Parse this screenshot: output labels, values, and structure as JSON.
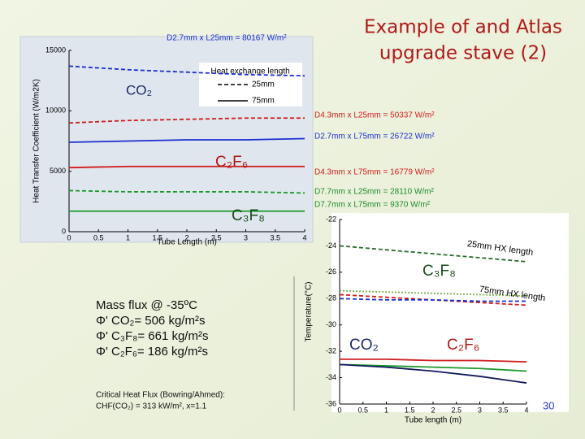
{
  "title": [
    "Example of and Atlas",
    "upgrade stave (2)"
  ],
  "mass_flux": [
    "Mass flux @ -35ºC",
    "Φ' CO₂=   506 kg/m²s",
    "Φ' C₃F₈=  661 kg/m²s",
    "Φ' C₂F₆=  186 kg/m²s"
  ],
  "chf": [
    "Critical Heat Flux (Bowring/Ahmed):",
    "CHF(CO₂) = 313 kW/m², x=1.1"
  ],
  "page_number": "30",
  "chart_data": [
    {
      "type": "line",
      "xlabel": "Tube Length (m)",
      "ylabel": "Heat Transfer Coefficient (W/m2K)",
      "x": [
        0,
        1,
        2,
        3,
        4
      ],
      "xlim": [
        0,
        4
      ],
      "xticks": [
        0,
        0.5,
        1,
        1.5,
        2,
        2.5,
        3,
        3.5,
        4
      ],
      "ylim": [
        0,
        15000
      ],
      "yticks": [
        0,
        5000,
        10000,
        15000
      ],
      "legend_title": "Heat exchange length",
      "legend": [
        {
          "label": "25mm",
          "style": "dashed"
        },
        {
          "label": "75mm",
          "style": "solid"
        }
      ],
      "series": [
        {
          "color": "#1c2fd0",
          "style": "dashed",
          "values": [
            13700,
            13400,
            13200,
            13000,
            12900
          ]
        },
        {
          "color": "#d01c1c",
          "style": "dashed",
          "values": [
            9000,
            9200,
            9300,
            9400,
            9400
          ]
        },
        {
          "color": "#1c2fd0",
          "style": "solid",
          "values": [
            7400,
            7500,
            7600,
            7600,
            7700
          ]
        },
        {
          "color": "#d01c1c",
          "style": "solid",
          "values": [
            5300,
            5400,
            5400,
            5400,
            5400
          ]
        },
        {
          "color": "#1a9a2a",
          "style": "dashed",
          "values": [
            3400,
            3300,
            3300,
            3300,
            3200
          ]
        },
        {
          "color": "#1a9a2a",
          "style": "solid",
          "values": [
            1700,
            1700,
            1700,
            1700,
            1700
          ]
        }
      ],
      "annotations": [
        {
          "text": "D2.7mm x L25mm = 80167 W/m²",
          "color": "#1c2fd0"
        },
        {
          "text": "D4.3mm x L25mm = 50337 W/m²",
          "color": "#d01c1c"
        },
        {
          "text": "D2.7mm x L75mm = 26722 W/m²",
          "color": "#1c2fd0"
        },
        {
          "text": "D4.3mm x L75mm = 16779 W/m²",
          "color": "#d01c1c"
        },
        {
          "text": "D7.7mm x L25mm = 28110 W/m²",
          "color": "#1a8a2a"
        },
        {
          "text": "D7.7mm x L75mm = 9370 W/m²",
          "color": "#1a8a2a"
        },
        {
          "text": "CO₂",
          "color": "#1a2a6a"
        },
        {
          "text": "C₂F₆",
          "color": "#b01818"
        },
        {
          "text": "C₃F₈",
          "color": "#1a4a1a"
        }
      ]
    },
    {
      "type": "line",
      "xlabel": "Tube length (m)",
      "ylabel": "Temperature(°C)",
      "x": [
        0,
        1,
        2,
        3,
        4
      ],
      "xlim": [
        0,
        4
      ],
      "xticks": [
        0,
        0.5,
        1,
        1.5,
        2,
        2.5,
        3,
        3.5,
        4
      ],
      "ylim": [
        -36,
        -22
      ],
      "yticks": [
        -22,
        -24,
        -26,
        -28,
        -30,
        -32,
        -34,
        -36
      ],
      "series": [
        {
          "color": "#2a6a2a",
          "style": "dashed",
          "values": [
            -24.0,
            -24.3,
            -24.6,
            -24.9,
            -25.2
          ]
        },
        {
          "color": "#7ab04a",
          "style": "dotted",
          "values": [
            -27.4,
            -27.5,
            -27.6,
            -27.7,
            -27.8
          ]
        },
        {
          "color": "#d01c1c",
          "style": "dashed",
          "values": [
            -27.7,
            -27.9,
            -28.1,
            -28.3,
            -28.5
          ]
        },
        {
          "color": "#1c2fd0",
          "style": "dashed",
          "values": [
            -28.0,
            -28.1,
            -28.1,
            -28.2,
            -28.2
          ]
        },
        {
          "color": "#d01c1c",
          "style": "solid",
          "values": [
            -32.6,
            -32.6,
            -32.7,
            -32.7,
            -32.8
          ]
        },
        {
          "color": "#1a9a2a",
          "style": "solid",
          "values": [
            -33.0,
            -33.1,
            -33.2,
            -33.3,
            -33.5
          ]
        },
        {
          "color": "#101a5a",
          "style": "solid",
          "values": [
            -33.0,
            -33.2,
            -33.5,
            -33.9,
            -34.4
          ]
        }
      ],
      "annotations": [
        {
          "text": "25mm HX length",
          "color": "#000000"
        },
        {
          "text": "C₃F₈",
          "color": "#1a4a1a"
        },
        {
          "text": "75mm HX length",
          "color": "#000000"
        },
        {
          "text": "CO₂",
          "color": "#1a2a6a"
        },
        {
          "text": "C₂F₆",
          "color": "#b01818"
        }
      ]
    }
  ]
}
